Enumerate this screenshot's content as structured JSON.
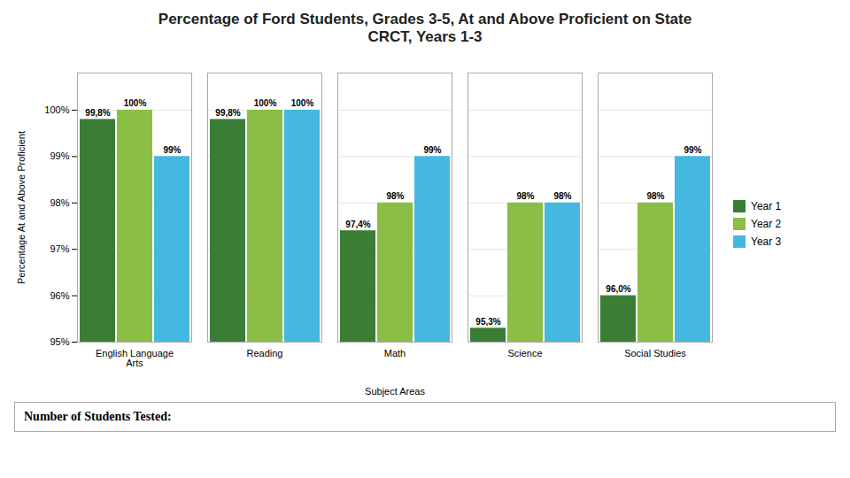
{
  "chart_data": {
    "type": "bar",
    "title": "Percentage of Ford Students, Grades 3-5, At and Above Proficient on State\nCRCT, Years 1-3",
    "categories": [
      "English Language\nArts",
      "Reading",
      "Math",
      "Science",
      "Social Studies"
    ],
    "series": [
      {
        "name": "Year 1",
        "color": "#3a7d35",
        "values": [
          99.8,
          99.8,
          97.4,
          95.3,
          96.0
        ],
        "value_labels": [
          "99,8%",
          "99,8%",
          "97,4%",
          "95,3%",
          "96,0%"
        ]
      },
      {
        "name": "Year 2",
        "color": "#8bbe44",
        "values": [
          100.0,
          100.0,
          98.0,
          98.0,
          98.0
        ],
        "value_labels": [
          "100%",
          "100%",
          "98%",
          "98%",
          "98%"
        ]
      },
      {
        "name": "Year 3",
        "color": "#44b8e0",
        "values": [
          99.0,
          100.0,
          99.0,
          98.0,
          99.0
        ],
        "value_labels": [
          "99%",
          "100%",
          "99%",
          "98%",
          "99%"
        ]
      }
    ],
    "xlabel": "Subject Areas",
    "ylabel": "Percentage At and Above Proficient",
    "ylim": [
      95.0,
      100.8
    ],
    "yticks": [
      {
        "value": 95,
        "label": "95%"
      },
      {
        "value": 96,
        "label": "96%"
      },
      {
        "value": 97,
        "label": "97%"
      },
      {
        "value": 98,
        "label": "98%"
      },
      {
        "value": 99,
        "label": "99%"
      },
      {
        "value": 100,
        "label": "100%"
      }
    ],
    "grid": true,
    "data_labels": true,
    "legend": "right",
    "annotations": [
      "Number of Students Tested:"
    ]
  }
}
